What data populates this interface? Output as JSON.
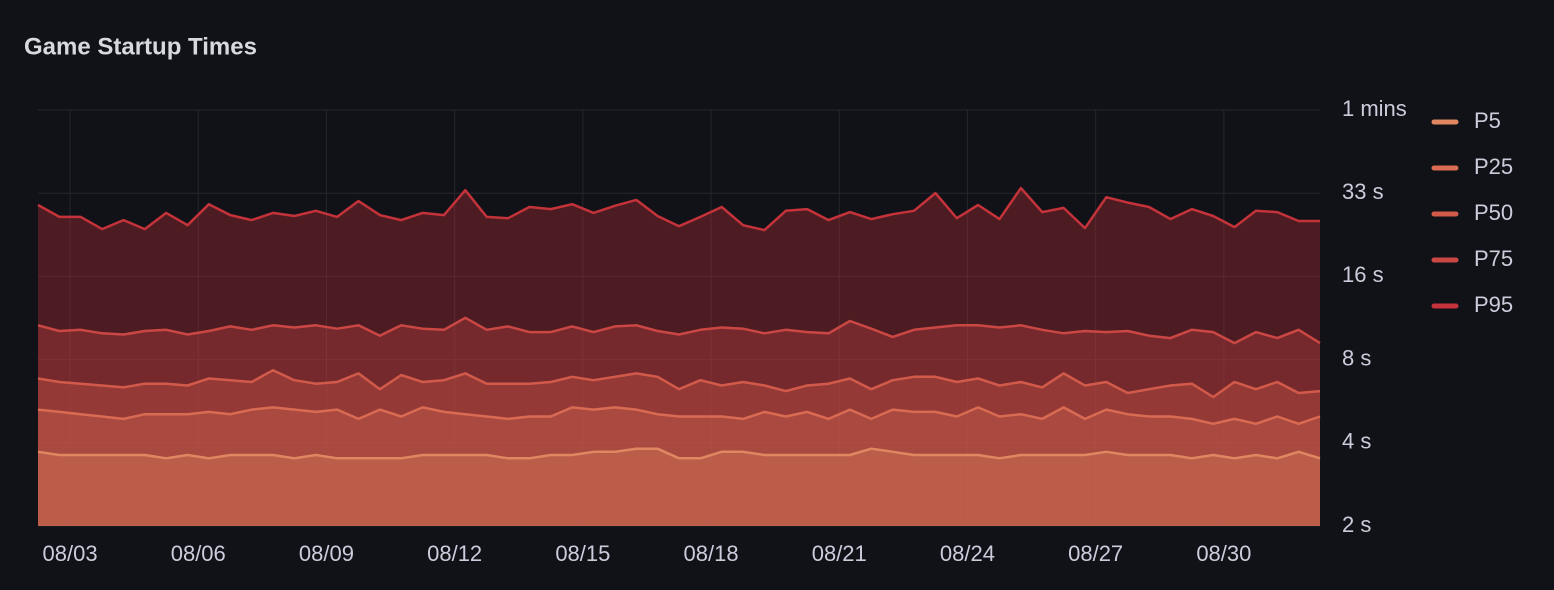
{
  "chart_data": {
    "type": "line",
    "title": "Game Startup Times",
    "x": [
      2.25,
      2.75,
      3.25,
      3.75,
      4.25,
      4.75,
      5.25,
      5.75,
      6.25,
      6.75,
      7.25,
      7.75,
      8.25,
      8.75,
      9.25,
      9.75,
      10.25,
      10.75,
      11.25,
      11.75,
      12.25,
      12.75,
      13.25,
      13.75,
      14.25,
      14.75,
      15.25,
      15.75,
      16.25,
      16.75,
      17.25,
      17.75,
      18.25,
      18.75,
      19.25,
      19.75,
      20.25,
      20.75,
      21.25,
      21.75,
      22.25,
      22.75,
      23.25,
      23.75,
      24.25,
      24.75,
      25.25,
      25.75,
      26.25,
      26.75,
      27.25,
      27.75,
      28.25,
      28.75,
      29.25,
      29.75,
      30.25,
      30.75,
      31.25,
      31.75,
      32.25
    ],
    "xlim": [
      2.25,
      32.25
    ],
    "xticks": [
      {
        "value": 3,
        "label": "08/03"
      },
      {
        "value": 6,
        "label": "08/06"
      },
      {
        "value": 9,
        "label": "08/09"
      },
      {
        "value": 12,
        "label": "08/12"
      },
      {
        "value": 15,
        "label": "08/15"
      },
      {
        "value": 18,
        "label": "08/18"
      },
      {
        "value": 21,
        "label": "08/21"
      },
      {
        "value": 24,
        "label": "08/24"
      },
      {
        "value": 27,
        "label": "08/27"
      },
      {
        "value": 30,
        "label": "08/30"
      }
    ],
    "ylim": [
      2.048,
      65.536
    ],
    "yscale": "log",
    "yticks": [
      {
        "value": 2.048,
        "label": "2 s"
      },
      {
        "value": 4.096,
        "label": "4 s"
      },
      {
        "value": 8.192,
        "label": "8 s"
      },
      {
        "value": 16.384,
        "label": "16 s"
      },
      {
        "value": 32.768,
        "label": "33 s"
      },
      {
        "value": 65.536,
        "label": "1 mins"
      }
    ],
    "grid": true,
    "legend": "right",
    "series": [
      {
        "name": "P5",
        "color": "#e08762",
        "values": [
          3.8,
          3.7,
          3.7,
          3.7,
          3.7,
          3.7,
          3.6,
          3.7,
          3.6,
          3.7,
          3.7,
          3.7,
          3.6,
          3.7,
          3.6,
          3.6,
          3.6,
          3.6,
          3.7,
          3.7,
          3.7,
          3.7,
          3.6,
          3.6,
          3.7,
          3.7,
          3.8,
          3.8,
          3.9,
          3.9,
          3.6,
          3.6,
          3.8,
          3.8,
          3.7,
          3.7,
          3.7,
          3.7,
          3.7,
          3.9,
          3.8,
          3.7,
          3.7,
          3.7,
          3.7,
          3.6,
          3.7,
          3.7,
          3.7,
          3.7,
          3.8,
          3.7,
          3.7,
          3.7,
          3.6,
          3.7,
          3.6,
          3.7,
          3.6,
          3.8,
          3.6
        ]
      },
      {
        "name": "P25",
        "color": "#d96b53",
        "values": [
          5.4,
          5.3,
          5.2,
          5.1,
          5.0,
          5.2,
          5.2,
          5.2,
          5.3,
          5.2,
          5.4,
          5.5,
          5.4,
          5.3,
          5.4,
          5.0,
          5.4,
          5.1,
          5.5,
          5.3,
          5.2,
          5.1,
          5.0,
          5.1,
          5.1,
          5.5,
          5.4,
          5.5,
          5.4,
          5.2,
          5.1,
          5.1,
          5.1,
          5.0,
          5.3,
          5.1,
          5.3,
          5.0,
          5.4,
          5.0,
          5.4,
          5.3,
          5.3,
          5.1,
          5.5,
          5.1,
          5.2,
          5.0,
          5.5,
          5.0,
          5.4,
          5.2,
          5.1,
          5.1,
          5.0,
          4.8,
          5.0,
          4.8,
          5.1,
          4.8,
          5.1
        ]
      },
      {
        "name": "P50",
        "color": "#d25a4b",
        "values": [
          7.0,
          6.8,
          6.7,
          6.6,
          6.5,
          6.7,
          6.7,
          6.6,
          7.0,
          6.9,
          6.8,
          7.5,
          6.9,
          6.7,
          6.8,
          7.3,
          6.4,
          7.2,
          6.8,
          6.9,
          7.3,
          6.7,
          6.7,
          6.7,
          6.8,
          7.1,
          6.9,
          7.1,
          7.3,
          7.1,
          6.4,
          6.9,
          6.6,
          6.8,
          6.6,
          6.3,
          6.6,
          6.7,
          7.0,
          6.4,
          6.9,
          7.1,
          7.1,
          6.8,
          7.0,
          6.6,
          6.8,
          6.5,
          7.3,
          6.6,
          6.8,
          6.2,
          6.4,
          6.6,
          6.7,
          6.0,
          6.8,
          6.4,
          6.8,
          6.2,
          6.3
        ]
      },
      {
        "name": "P75",
        "color": "#cb4744",
        "values": [
          10.9,
          10.4,
          10.5,
          10.2,
          10.1,
          10.4,
          10.5,
          10.1,
          10.4,
          10.8,
          10.5,
          10.9,
          10.7,
          10.9,
          10.6,
          10.9,
          10.0,
          10.9,
          10.6,
          10.5,
          11.6,
          10.5,
          10.8,
          10.3,
          10.3,
          10.8,
          10.3,
          10.8,
          10.9,
          10.4,
          10.1,
          10.5,
          10.7,
          10.6,
          10.2,
          10.5,
          10.3,
          10.2,
          11.3,
          10.6,
          9.9,
          10.5,
          10.7,
          10.9,
          10.9,
          10.7,
          10.9,
          10.5,
          10.2,
          10.4,
          10.3,
          10.4,
          10.0,
          9.8,
          10.5,
          10.3,
          9.4,
          10.3,
          9.8,
          10.5,
          9.4
        ]
      },
      {
        "name": "P95",
        "color": "#c4323a",
        "values": [
          29.7,
          26.9,
          26.9,
          24.3,
          26.2,
          24.3,
          27.8,
          25.1,
          29.9,
          27.3,
          26.2,
          27.8,
          27.1,
          28.3,
          26.9,
          30.7,
          27.3,
          26.2,
          27.8,
          27.3,
          33.6,
          26.9,
          26.6,
          29.2,
          28.7,
          29.9,
          27.8,
          29.5,
          31.0,
          27.1,
          24.9,
          26.9,
          29.2,
          25.1,
          24.1,
          28.3,
          28.7,
          26.2,
          28.0,
          26.4,
          27.5,
          28.3,
          32.8,
          26.6,
          29.7,
          26.4,
          34.2,
          28.0,
          29.0,
          24.5,
          31.7,
          30.3,
          29.2,
          26.4,
          28.7,
          27.1,
          24.7,
          28.3,
          28.0,
          26.0,
          26.0
        ]
      }
    ]
  }
}
